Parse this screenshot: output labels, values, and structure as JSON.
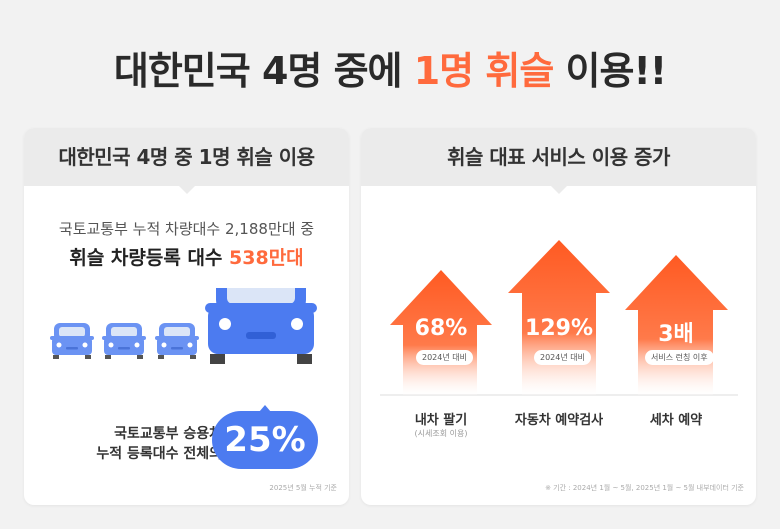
{
  "title": {
    "part1": "대한민국 4명 중에 ",
    "highlight": "1명 휘슬",
    "part2": " 이용!!"
  },
  "left_card": {
    "header_pre": "대한민국 4명 중 ",
    "header_bold": "1명",
    "header_post": " 휘슬 이용",
    "line1": "국토교통부 누적 차량대수 2,188만대 중",
    "line2_pre": "휘슬 차량등록 대수 ",
    "line2_highlight": "538만대",
    "caption_line1": "국토교통부 승용차",
    "caption_line2": "누적 등록대수 전체의",
    "percent": "25%",
    "note": "2025년 5월 누적 기준"
  },
  "right_card": {
    "header": "휘슬 대표 서비스 이용 증가",
    "items": [
      {
        "value": "68%",
        "badge": "2024년 대비",
        "label": "내차 팔기",
        "sublabel": "(시세조회 이용)"
      },
      {
        "value": "129%",
        "badge": "2024년 대비",
        "label": "자동차 예약검사"
      },
      {
        "value": "3배",
        "badge": "서비스 런칭 이후",
        "label": "세차 예약"
      }
    ],
    "note": "※ 기간 : 2024년 1월 ~ 5월, 2025년 1월 ~ 5월 내부데이터 기준"
  },
  "colors": {
    "accent": "#ff6a3d",
    "car_blue": "#4c7bf0",
    "background": "#f2f2f2"
  }
}
